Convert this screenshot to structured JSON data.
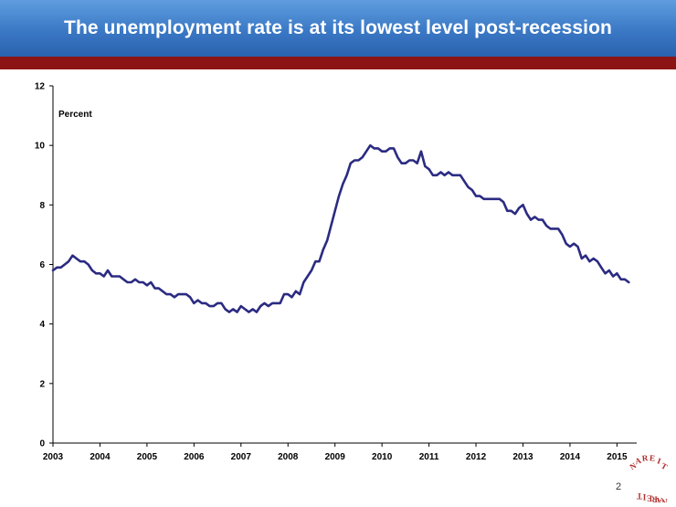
{
  "slide": {
    "title": "The unemployment rate is at its lowest level post-recession",
    "page_number": "2",
    "logo_text": "NAREIT"
  },
  "colors": {
    "title_bar": "#3a78c5",
    "accent_bar": "#8c1414",
    "line": "#2b2b82",
    "logo": "#b02a2a"
  },
  "chart_data": {
    "type": "line",
    "ylabel": "Percent",
    "ylim": [
      0,
      12
    ],
    "yticks": [
      0,
      2,
      4,
      6,
      8,
      10,
      12
    ],
    "xticks": [
      "2003",
      "2004",
      "2005",
      "2006",
      "2007",
      "2008",
      "2009",
      "2010",
      "2011",
      "2012",
      "2013",
      "2014",
      "2015"
    ],
    "x_start": "2003-01",
    "x_end": "2015-04",
    "series": [
      {
        "values": [
          5.8,
          5.9,
          5.9,
          6.0,
          6.1,
          6.3,
          6.2,
          6.1,
          6.1,
          6.0,
          5.8,
          5.7,
          5.7,
          5.6,
          5.8,
          5.6,
          5.6,
          5.6,
          5.5,
          5.4,
          5.4,
          5.5,
          5.4,
          5.4,
          5.3,
          5.4,
          5.2,
          5.2,
          5.1,
          5.0,
          5.0,
          4.9,
          5.0,
          5.0,
          5.0,
          4.9,
          4.7,
          4.8,
          4.7,
          4.7,
          4.6,
          4.6,
          4.7,
          4.7,
          4.5,
          4.4,
          4.5,
          4.4,
          4.6,
          4.5,
          4.4,
          4.5,
          4.4,
          4.6,
          4.7,
          4.6,
          4.7,
          4.7,
          4.7,
          5.0,
          5.0,
          4.9,
          5.1,
          5.0,
          5.4,
          5.6,
          5.8,
          6.1,
          6.1,
          6.5,
          6.8,
          7.3,
          7.8,
          8.3,
          8.7,
          9.0,
          9.4,
          9.5,
          9.5,
          9.6,
          9.8,
          10.0,
          9.9,
          9.9,
          9.8,
          9.8,
          9.9,
          9.9,
          9.6,
          9.4,
          9.4,
          9.5,
          9.5,
          9.4,
          9.8,
          9.3,
          9.2,
          9.0,
          9.0,
          9.1,
          9.0,
          9.1,
          9.0,
          9.0,
          9.0,
          8.8,
          8.6,
          8.5,
          8.3,
          8.3,
          8.2,
          8.2,
          8.2,
          8.2,
          8.2,
          8.1,
          7.8,
          7.8,
          7.7,
          7.9,
          8.0,
          7.7,
          7.5,
          7.6,
          7.5,
          7.5,
          7.3,
          7.2,
          7.2,
          7.2,
          7.0,
          6.7,
          6.6,
          6.7,
          6.6,
          6.2,
          6.3,
          6.1,
          6.2,
          6.1,
          5.9,
          5.7,
          5.8,
          5.6,
          5.7,
          5.5,
          5.5,
          5.4
        ]
      }
    ],
    "grid": false,
    "legend": "none"
  }
}
